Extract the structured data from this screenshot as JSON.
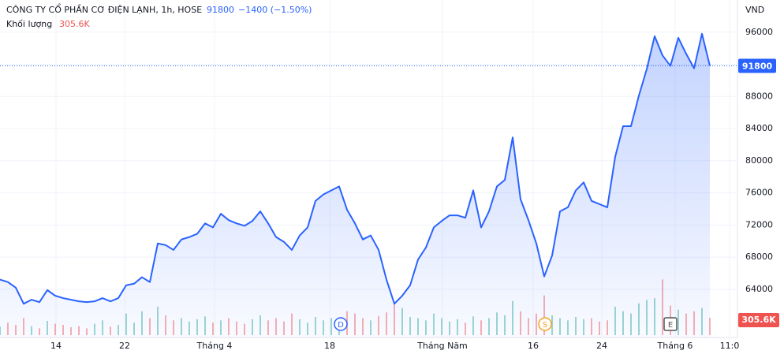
{
  "header": {
    "symbol": "CÔNG TY CỔ PHẦN CƠ ĐIỆN LẠNH, 1h, HOSE",
    "price": 91800,
    "change": "−1400 (−1.50%)",
    "volume_label": "Khối lượng",
    "volume": "305.6K"
  },
  "chart_data": {
    "type": "area",
    "currency": "VND",
    "color": "#2962ff",
    "values": [
      65200,
      64900,
      64200,
      62200,
      62700,
      62400,
      63900,
      63200,
      62900,
      62700,
      62500,
      62400,
      62500,
      62900,
      62500,
      62900,
      64500,
      64700,
      65500,
      64900,
      69700,
      69500,
      68900,
      70200,
      70500,
      70900,
      72200,
      71700,
      73400,
      72600,
      72200,
      71900,
      72500,
      73700,
      72200,
      70500,
      69900,
      68900,
      70700,
      71700,
      75000,
      75800,
      76300,
      76800,
      73900,
      72200,
      70200,
      70700,
      68900,
      65200,
      62200,
      63200,
      64500,
      67700,
      69200,
      71700,
      72500,
      73200,
      73200,
      72900,
      76300,
      71700,
      73700,
      76800,
      77600,
      82900,
      75200,
      72600,
      69700,
      65600,
      68200,
      73700,
      74200,
      76300,
      77300,
      75000,
      74600,
      74200,
      80500,
      84300,
      84300,
      88100,
      91400,
      95500,
      93100,
      91800,
      95300,
      93300,
      91500,
      95800,
      91800
    ],
    "volume": [
      150,
      220,
      180,
      300,
      160,
      120,
      250,
      200,
      180,
      140,
      160,
      120,
      200,
      260,
      150,
      180,
      380,
      220,
      420,
      300,
      500,
      350,
      260,
      300,
      240,
      280,
      330,
      220,
      260,
      300,
      240,
      200,
      280,
      350,
      260,
      300,
      240,
      380,
      280,
      220,
      320,
      260,
      300,
      250,
      420,
      380,
      300,
      260,
      340,
      400,
      550,
      480,
      320,
      300,
      260,
      380,
      300,
      240,
      280,
      220,
      330,
      260,
      300,
      400,
      350,
      600,
      420,
      300,
      380,
      700,
      350,
      300,
      260,
      320,
      280,
      300,
      240,
      260,
      500,
      420,
      380,
      560,
      620,
      650,
      980,
      520,
      450,
      380,
      420,
      480,
      305.6
    ],
    "volume_lim": [
      0,
      1000
    ],
    "ylim": [
      58000,
      100000
    ],
    "yticks": [
      64000,
      68000,
      72000,
      76000,
      80000,
      84000,
      88000,
      92000,
      96000
    ],
    "xlim": [
      0,
      93.5
    ],
    "xticks": [
      {
        "value": 7.1,
        "label": "14"
      },
      {
        "value": 15.8,
        "label": "22"
      },
      {
        "value": 27.2,
        "label": "Tháng 4"
      },
      {
        "value": 41.8,
        "label": "18"
      },
      {
        "value": 56.1,
        "label": "Tháng Năm"
      },
      {
        "value": 67.6,
        "label": "16"
      },
      {
        "value": 76.3,
        "label": "24"
      },
      {
        "value": 85.6,
        "label": "Tháng 6"
      },
      {
        "value": 92.5,
        "label": "11:0"
      }
    ],
    "events": [
      {
        "label": "D",
        "at": 43.2,
        "color": "#2962ff"
      },
      {
        "label": "S",
        "at": 69.1,
        "color": "#f7a21b"
      },
      {
        "label": "E",
        "at": 85.0,
        "color": "#555555"
      }
    ],
    "grid": true
  }
}
